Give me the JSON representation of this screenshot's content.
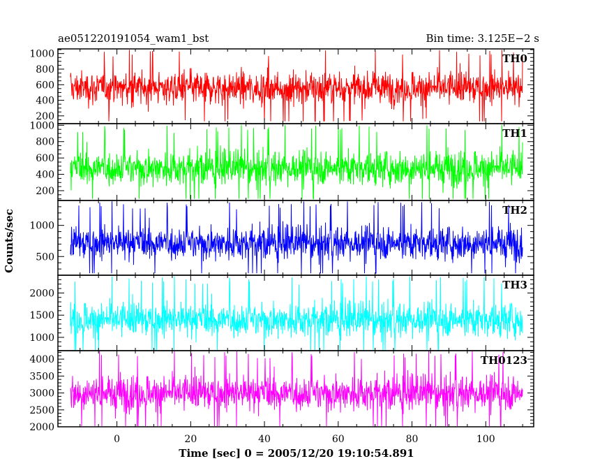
{
  "chart_data": {
    "type": "line",
    "title": "ae051220191054_wam1_bst",
    "bin_time_label": "Bin time: 3.125E−2 s",
    "xlabel": "Time [sec] 0 = 2005/12/20 19:10:54.891",
    "ylabel": "Counts/sec",
    "xlim": [
      -16,
      113
    ],
    "x_ticks": [
      0,
      20,
      40,
      60,
      80,
      100
    ],
    "bin_time_sec": 0.03125,
    "panels": [
      {
        "name": "TH0",
        "color": "#ff0000",
        "ylim": [
          100,
          1060
        ],
        "y_ticks": [
          200,
          400,
          600,
          800,
          1000
        ],
        "mean": 560,
        "min": 130,
        "max": 1050
      },
      {
        "name": "TH1",
        "color": "#00ff00",
        "ylim": [
          80,
          1020
        ],
        "y_ticks": [
          200,
          400,
          600,
          800,
          1000
        ],
        "mean": 480,
        "min": 100,
        "max": 1010
      },
      {
        "name": "TH2",
        "color": "#0000ff",
        "ylim": [
          200,
          1400
        ],
        "y_ticks": [
          500,
          1000
        ],
        "mean": 720,
        "min": 230,
        "max": 1390
      },
      {
        "name": "TH3",
        "color": "#00ffff",
        "ylim": [
          700,
          2400
        ],
        "y_ticks": [
          1000,
          1500,
          2000
        ],
        "mean": 1400,
        "min": 700,
        "max": 2380
      },
      {
        "name": "TH0123",
        "color": "#ff00ff",
        "ylim": [
          2000,
          4250
        ],
        "y_ticks": [
          2000,
          2500,
          3000,
          3500,
          4000
        ],
        "mean": 3000,
        "min": 2000,
        "max": 4250
      }
    ]
  }
}
